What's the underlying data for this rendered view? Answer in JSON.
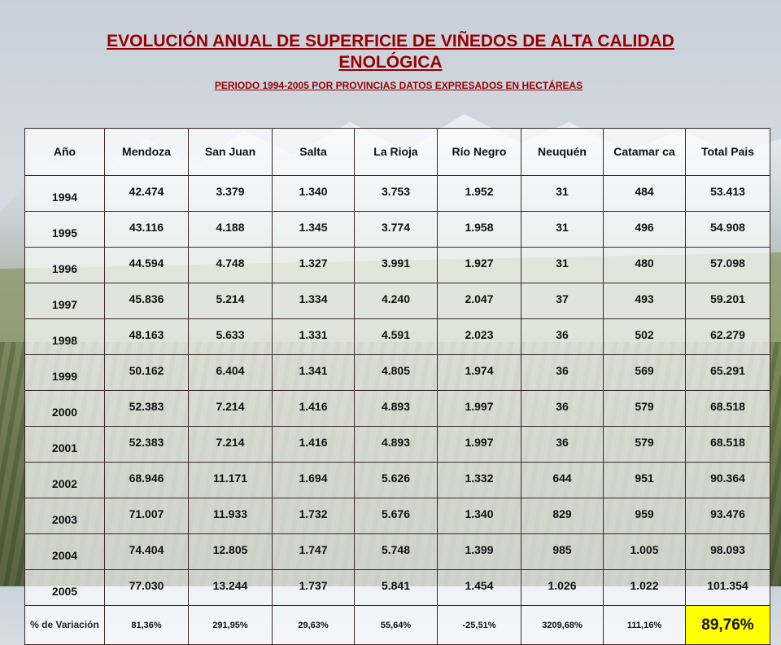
{
  "title": "EVOLUCIÓN ANUAL DE SUPERFICIE DE VIÑEDOS DE ALTA CALIDAD ENOLÓGICA",
  "subtitle": "PERIODO 1994-2005 POR PROVINCIAS DATOS EXPRESADOS EN HECTÁREAS",
  "headers": [
    "Año",
    "Mendoza",
    "San Juan",
    "Salta",
    "La Rioja",
    "Río Negro",
    "Neuquén",
    "Catamar ca",
    "Total Pais"
  ],
  "rows": [
    [
      "1994",
      "42.474",
      "3.379",
      "1.340",
      "3.753",
      "1.952",
      "31",
      "484",
      "53.413"
    ],
    [
      "1995",
      "43.116",
      "4.188",
      "1.345",
      "3.774",
      "1.958",
      "31",
      "496",
      "54.908"
    ],
    [
      "1996",
      "44.594",
      "4.748",
      "1.327",
      "3.991",
      "1.927",
      "31",
      "480",
      "57.098"
    ],
    [
      "1997",
      "45.836",
      "5.214",
      "1.334",
      "4.240",
      "2.047",
      "37",
      "493",
      "59.201"
    ],
    [
      "1998",
      "48.163",
      "5.633",
      "1.331",
      "4.591",
      "2.023",
      "36",
      "502",
      "62.279"
    ],
    [
      "1999",
      "50.162",
      "6.404",
      "1.341",
      "4.805",
      "1.974",
      "36",
      "569",
      "65.291"
    ],
    [
      "2000",
      "52.383",
      "7.214",
      "1.416",
      "4.893",
      "1.997",
      "36",
      "579",
      "68.518"
    ],
    [
      "2001",
      "52.383",
      "7.214",
      "1.416",
      "4.893",
      "1.997",
      "36",
      "579",
      "68.518"
    ],
    [
      "2002",
      "68.946",
      "11.171",
      "1.694",
      "5.626",
      "1.332",
      "644",
      "951",
      "90.364"
    ],
    [
      "2003",
      "71.007",
      "11.933",
      "1.732",
      "5.676",
      "1.340",
      "829",
      "959",
      "93.476"
    ],
    [
      "2004",
      "74.404",
      "12.805",
      "1.747",
      "5.748",
      "1.399",
      "985",
      "1.005",
      "98.093"
    ],
    [
      "2005",
      "77.030",
      "13.244",
      "1.737",
      "5.841",
      "1.454",
      "1.026",
      "1.022",
      "101.354"
    ]
  ],
  "variation_row": {
    "label": "% de Variación",
    "values": [
      "81,36%",
      "291,95%",
      "29,63%",
      "55,64%",
      "-25,51%",
      "3209,68%",
      "111,16%",
      "89,76%"
    ],
    "highlight_color": "#ffff00"
  },
  "colors": {
    "title": "#990000",
    "highlight": "#ffff00"
  }
}
